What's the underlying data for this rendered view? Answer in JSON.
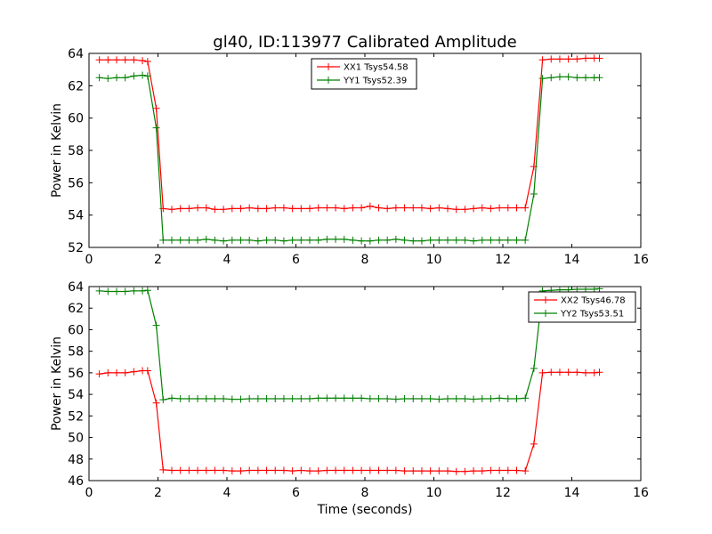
{
  "chart_data": [
    {
      "type": "line",
      "title": "gl40, ID:113977 Calibrated Amplitude",
      "xlabel": "",
      "ylabel": "Power in Kelvin",
      "xlim": [
        0,
        16
      ],
      "ylim": [
        52,
        64
      ],
      "xticks": [
        "0",
        "2",
        "4",
        "6",
        "8",
        "10",
        "12",
        "14",
        "16"
      ],
      "yticks": [
        "52",
        "54",
        "56",
        "58",
        "60",
        "62",
        "64"
      ],
      "legend_position": "upper-center",
      "x": [
        0.3,
        0.55,
        0.8,
        1.05,
        1.3,
        1.55,
        1.7,
        1.95,
        2.15,
        2.4,
        2.65,
        2.9,
        3.15,
        3.4,
        3.65,
        3.9,
        4.15,
        4.4,
        4.65,
        4.9,
        5.15,
        5.4,
        5.65,
        5.9,
        6.15,
        6.4,
        6.65,
        6.9,
        7.15,
        7.4,
        7.65,
        7.9,
        8.15,
        8.4,
        8.65,
        8.9,
        9.15,
        9.4,
        9.65,
        9.9,
        10.15,
        10.4,
        10.65,
        10.9,
        11.15,
        11.4,
        11.65,
        11.9,
        12.15,
        12.4,
        12.65,
        12.9,
        13.15,
        13.4,
        13.65,
        13.9,
        14.15,
        14.4,
        14.65,
        14.8
      ],
      "series": [
        {
          "name": "XX1 Tsys54.58",
          "color": "#ff0000",
          "values": [
            63.6,
            63.6,
            63.6,
            63.6,
            63.6,
            63.55,
            63.5,
            60.6,
            54.4,
            54.35,
            54.4,
            54.4,
            54.45,
            54.45,
            54.35,
            54.35,
            54.4,
            54.4,
            54.45,
            54.4,
            54.4,
            54.45,
            54.45,
            54.4,
            54.4,
            54.4,
            54.45,
            54.45,
            54.45,
            54.4,
            54.45,
            54.45,
            54.55,
            54.45,
            54.4,
            54.45,
            54.45,
            54.45,
            54.45,
            54.4,
            54.45,
            54.4,
            54.35,
            54.35,
            54.4,
            54.45,
            54.4,
            54.45,
            54.45,
            54.45,
            54.45,
            57.0,
            63.6,
            63.65,
            63.65,
            63.65,
            63.65,
            63.7,
            63.7,
            63.7
          ]
        },
        {
          "name": "YY1 Tsys52.39",
          "color": "#008000",
          "values": [
            62.5,
            62.45,
            62.5,
            62.5,
            62.6,
            62.65,
            62.6,
            59.4,
            52.45,
            52.45,
            52.45,
            52.45,
            52.45,
            52.5,
            52.45,
            52.4,
            52.45,
            52.45,
            52.45,
            52.4,
            52.45,
            52.45,
            52.4,
            52.45,
            52.45,
            52.45,
            52.45,
            52.5,
            52.5,
            52.5,
            52.45,
            52.4,
            52.4,
            52.45,
            52.45,
            52.5,
            52.45,
            52.4,
            52.4,
            52.45,
            52.45,
            52.45,
            52.45,
            52.45,
            52.4,
            52.45,
            52.45,
            52.45,
            52.45,
            52.45,
            52.45,
            55.3,
            62.45,
            62.5,
            62.55,
            62.55,
            62.5,
            62.5,
            62.5,
            62.5
          ]
        }
      ]
    },
    {
      "type": "line",
      "title": "",
      "xlabel": "Time (seconds)",
      "ylabel": "Power in Kelvin",
      "xlim": [
        0,
        16
      ],
      "ylim": [
        46,
        64
      ],
      "xticks": [
        "0",
        "2",
        "4",
        "6",
        "8",
        "10",
        "12",
        "14",
        "16"
      ],
      "yticks": [
        "46",
        "48",
        "50",
        "52",
        "54",
        "56",
        "58",
        "60",
        "62",
        "64"
      ],
      "legend_position": "upper-right",
      "x": [
        0.3,
        0.55,
        0.8,
        1.05,
        1.3,
        1.55,
        1.7,
        1.95,
        2.15,
        2.4,
        2.65,
        2.9,
        3.15,
        3.4,
        3.65,
        3.9,
        4.15,
        4.4,
        4.65,
        4.9,
        5.15,
        5.4,
        5.65,
        5.9,
        6.15,
        6.4,
        6.65,
        6.9,
        7.15,
        7.4,
        7.65,
        7.9,
        8.15,
        8.4,
        8.65,
        8.9,
        9.15,
        9.4,
        9.65,
        9.9,
        10.15,
        10.4,
        10.65,
        10.9,
        11.15,
        11.4,
        11.65,
        11.9,
        12.15,
        12.4,
        12.65,
        12.9,
        13.15,
        13.4,
        13.65,
        13.9,
        14.15,
        14.4,
        14.65,
        14.8
      ],
      "series": [
        {
          "name": "XX2 Tsys46.78",
          "color": "#ff0000",
          "values": [
            55.9,
            56.0,
            56.0,
            56.0,
            56.1,
            56.2,
            56.2,
            53.2,
            47.0,
            46.95,
            46.95,
            46.95,
            46.95,
            46.95,
            46.95,
            46.95,
            46.9,
            46.9,
            46.95,
            46.95,
            46.95,
            46.95,
            46.95,
            46.9,
            46.95,
            46.9,
            46.9,
            46.95,
            46.95,
            46.95,
            46.95,
            46.95,
            46.95,
            46.95,
            46.95,
            46.95,
            46.9,
            46.9,
            46.9,
            46.9,
            46.9,
            46.9,
            46.85,
            46.85,
            46.9,
            46.9,
            46.95,
            46.95,
            46.95,
            46.95,
            46.9,
            49.4,
            56.0,
            56.05,
            56.05,
            56.05,
            56.05,
            56.0,
            56.0,
            56.05
          ]
        },
        {
          "name": "YY2 Tsys53.51",
          "color": "#008000",
          "values": [
            63.6,
            63.55,
            63.55,
            63.55,
            63.6,
            63.6,
            63.65,
            60.4,
            53.5,
            53.65,
            53.6,
            53.6,
            53.6,
            53.6,
            53.6,
            53.6,
            53.55,
            53.55,
            53.6,
            53.6,
            53.6,
            53.6,
            53.6,
            53.6,
            53.6,
            53.6,
            53.65,
            53.65,
            53.65,
            53.65,
            53.65,
            53.65,
            53.6,
            53.6,
            53.6,
            53.55,
            53.6,
            53.6,
            53.6,
            53.6,
            53.55,
            53.6,
            53.6,
            53.6,
            53.55,
            53.6,
            53.6,
            53.65,
            53.6,
            53.6,
            53.65,
            56.4,
            63.6,
            63.65,
            63.7,
            63.7,
            63.75,
            63.75,
            63.75,
            63.8
          ]
        }
      ]
    }
  ]
}
